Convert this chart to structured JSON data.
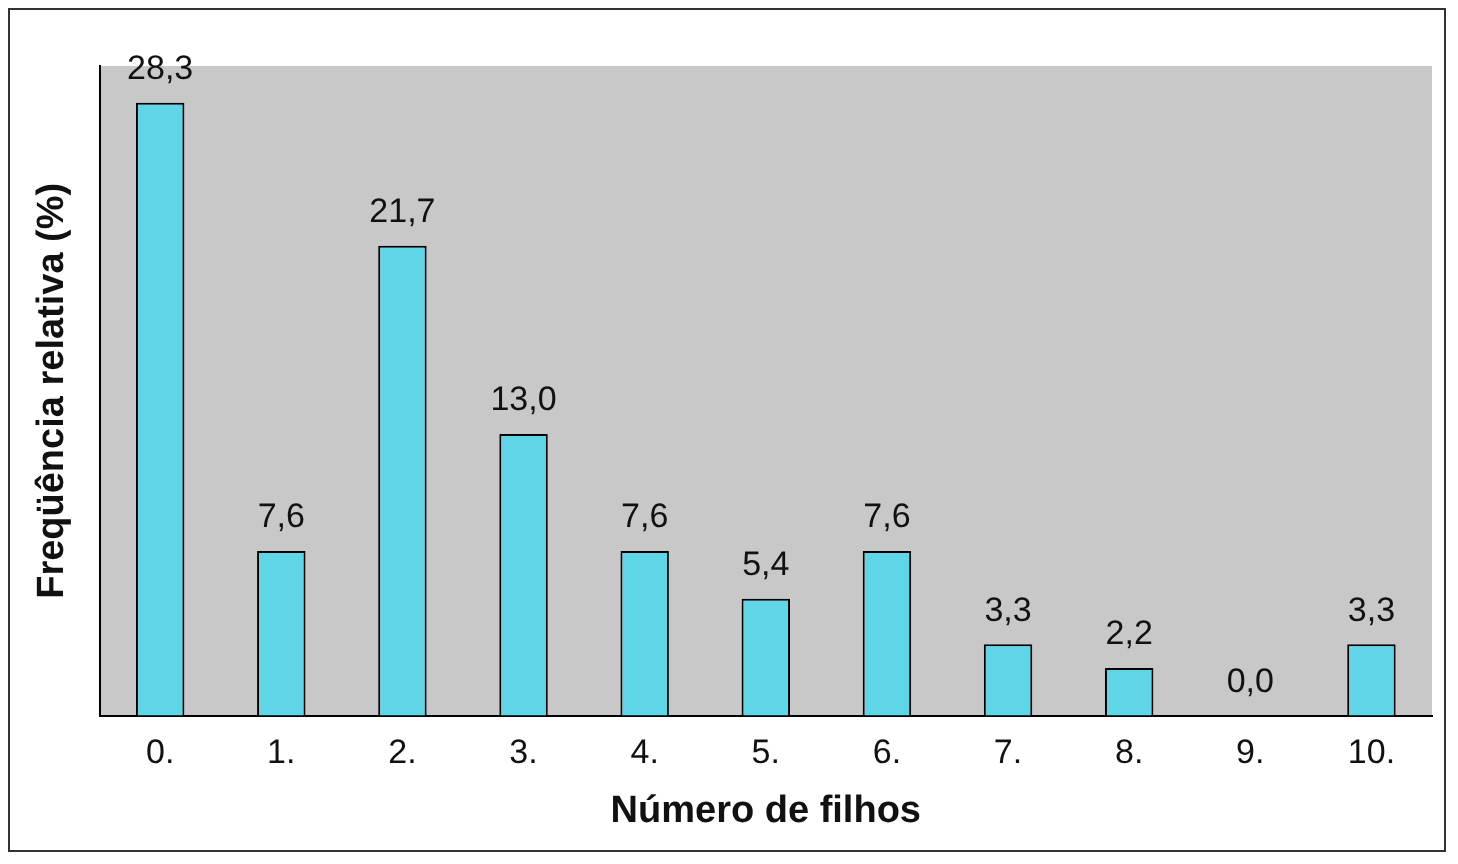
{
  "chart_data": {
    "type": "bar",
    "xlabel": "Número de filhos",
    "ylabel": "Freqüência relativa (%)",
    "categories": [
      "0.",
      "1.",
      "2.",
      "3.",
      "4.",
      "5.",
      "6.",
      "7.",
      "8.",
      "9.",
      "10."
    ],
    "values": [
      28.3,
      7.6,
      21.7,
      13.0,
      7.6,
      5.4,
      7.6,
      3.3,
      2.2,
      0.0,
      3.3
    ],
    "value_labels": [
      "28,3",
      "7,6",
      "21,7",
      "13,0",
      "7,6",
      "5,4",
      "7,6",
      "3,3",
      "2,2",
      "0,0",
      "3,3"
    ],
    "color": "#5ed6e8",
    "grid": false,
    "legend": false,
    "tick_labels": "x"
  }
}
